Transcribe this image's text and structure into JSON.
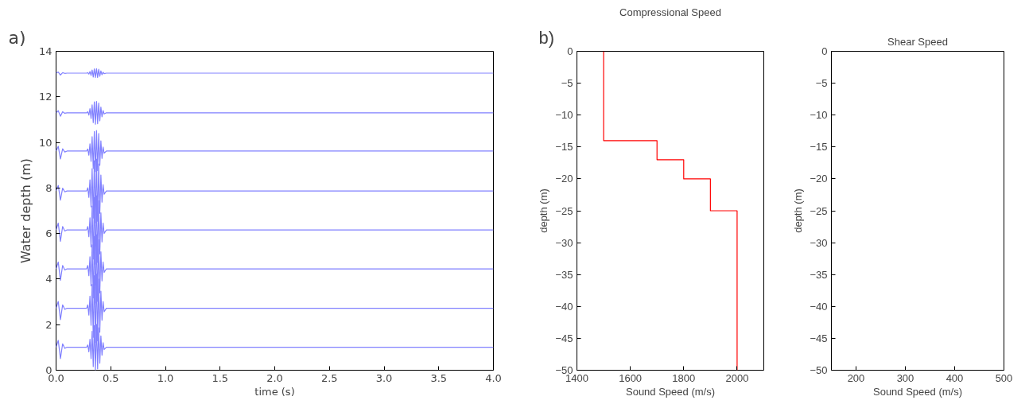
{
  "chart_data": [
    {
      "type": "line",
      "xlabel": "time (s)",
      "ylabel": "Water depth (m)",
      "annotations": [
        "a)"
      ],
      "xlim": [
        0,
        4
      ],
      "ylim": [
        0,
        14
      ],
      "xticks": [
        {
          "value": 0,
          "label": "0.0"
        },
        {
          "value": 0.5,
          "label": "0.5"
        },
        {
          "value": 1,
          "label": "1.0"
        },
        {
          "value": 1.5,
          "label": "1.5"
        },
        {
          "value": 2,
          "label": "2.0"
        },
        {
          "value": 2.5,
          "label": "2.5"
        },
        {
          "value": 3,
          "label": "3.0"
        },
        {
          "value": 3.5,
          "label": "3.5"
        },
        {
          "value": 4,
          "label": "4.0"
        }
      ],
      "yticks": [
        0,
        2,
        4,
        6,
        8,
        10,
        12,
        14
      ],
      "x": [
        0,
        0.02,
        0.04,
        0.06,
        0.08,
        0.1,
        0.28,
        0.29,
        0.3,
        0.31,
        0.32,
        0.33,
        0.34,
        0.35,
        0.36,
        0.37,
        0.38,
        0.39,
        0.4,
        0.41,
        0.42,
        0.43,
        0.44,
        0.46,
        4.0
      ],
      "series": [
        {
          "color": "#8080ff",
          "values": [
            1.01,
            1.31,
            0.51,
            1.16,
            0.96,
            1.01,
            1.01,
            1.11,
            0.81,
            1.36,
            0.51,
            1.71,
            0.16,
            1.96,
            0.01,
            2.01,
            0.06,
            1.86,
            0.31,
            1.51,
            0.66,
            1.21,
            0.91,
            1.01,
            1.01
          ]
        },
        {
          "color": "#8080ff",
          "values": [
            2.72,
            3.02,
            2.22,
            2.87,
            2.67,
            2.72,
            2.72,
            2.87,
            2.42,
            3.25,
            1.97,
            3.77,
            1.44,
            4.15,
            1.22,
            4.22,
            1.29,
            4.0,
            1.67,
            3.47,
            2.19,
            3.02,
            2.57,
            2.72,
            2.72
          ]
        },
        {
          "color": "#8080ff",
          "values": [
            4.45,
            4.75,
            3.95,
            4.6,
            4.4,
            4.45,
            4.45,
            4.6,
            4.15,
            4.98,
            3.7,
            5.5,
            3.17,
            5.88,
            2.95,
            5.95,
            3.02,
            5.73,
            3.4,
            5.2,
            3.92,
            4.75,
            4.3,
            4.45,
            4.45
          ]
        },
        {
          "color": "#8080ff",
          "values": [
            6.16,
            6.46,
            5.66,
            6.31,
            6.11,
            6.16,
            6.16,
            6.31,
            5.86,
            6.69,
            5.41,
            7.21,
            4.88,
            7.59,
            4.66,
            7.66,
            4.73,
            7.44,
            5.11,
            6.91,
            5.63,
            6.46,
            6.01,
            6.16,
            6.16
          ]
        },
        {
          "color": "#8080ff",
          "values": [
            7.87,
            8.11,
            7.47,
            7.99,
            7.83,
            7.87,
            7.87,
            8.01,
            7.59,
            8.36,
            7.17,
            8.85,
            6.68,
            9.2,
            6.47,
            9.27,
            6.54,
            9.06,
            6.89,
            8.57,
            7.38,
            8.15,
            7.73,
            7.87,
            7.87
          ]
        },
        {
          "color": "#8080ff",
          "values": [
            9.62,
            9.83,
            9.27,
            9.72,
            9.58,
            9.62,
            9.62,
            9.71,
            9.44,
            9.94,
            9.17,
            10.25,
            8.85,
            10.48,
            8.72,
            10.52,
            8.76,
            10.39,
            8.99,
            10.07,
            9.3,
            9.8,
            9.53,
            9.62,
            9.62
          ]
        },
        {
          "color": "#8080ff",
          "values": [
            11.3,
            11.39,
            11.15,
            11.35,
            11.28,
            11.3,
            11.3,
            11.35,
            11.2,
            11.48,
            11.05,
            11.65,
            10.87,
            11.78,
            10.8,
            11.8,
            10.82,
            11.73,
            10.95,
            11.55,
            11.12,
            11.4,
            11.25,
            11.3,
            11.3
          ]
        },
        {
          "color": "#8080ff",
          "values": [
            13.04,
            13.09,
            12.96,
            13.06,
            13.03,
            13.04,
            13.04,
            13.06,
            13.0,
            13.11,
            12.94,
            13.18,
            12.87,
            13.23,
            12.85,
            13.24,
            12.85,
            13.21,
            12.9,
            13.14,
            12.97,
            13.08,
            13.02,
            13.04,
            13.04
          ]
        }
      ]
    },
    {
      "type": "line",
      "title": "Compressional Speed",
      "xlabel": "Sound Speed (m/s)",
      "ylabel": "depth (m)",
      "annotations": [
        "b)"
      ],
      "xlim": [
        1400,
        2100
      ],
      "ylim": [
        -50,
        0
      ],
      "xticks": [
        1400,
        1600,
        1800,
        2000
      ],
      "yticks": [
        0,
        -5,
        -10,
        -15,
        -20,
        -25,
        -30,
        -35,
        -40,
        -45,
        -50
      ],
      "series": [
        {
          "color": "#ff0000",
          "x": [
            1500,
            1500,
            1700,
            1700,
            1800,
            1800,
            1900,
            1900,
            2000,
            2000
          ],
          "values": [
            0,
            -14,
            -14,
            -17,
            -17,
            -20,
            -20,
            -25,
            -25,
            -50
          ]
        }
      ]
    },
    {
      "type": "line",
      "title": "Shear Speed",
      "xlabel": "Sound Speed (m/s)",
      "ylabel": "depth (m)",
      "xlim": [
        150,
        500
      ],
      "ylim": [
        -50,
        0
      ],
      "xticks": [
        200,
        300,
        400,
        500
      ],
      "yticks": [
        0,
        -5,
        -10,
        -15,
        -20,
        -25,
        -30,
        -35,
        -40,
        -45,
        -50
      ]
    }
  ]
}
